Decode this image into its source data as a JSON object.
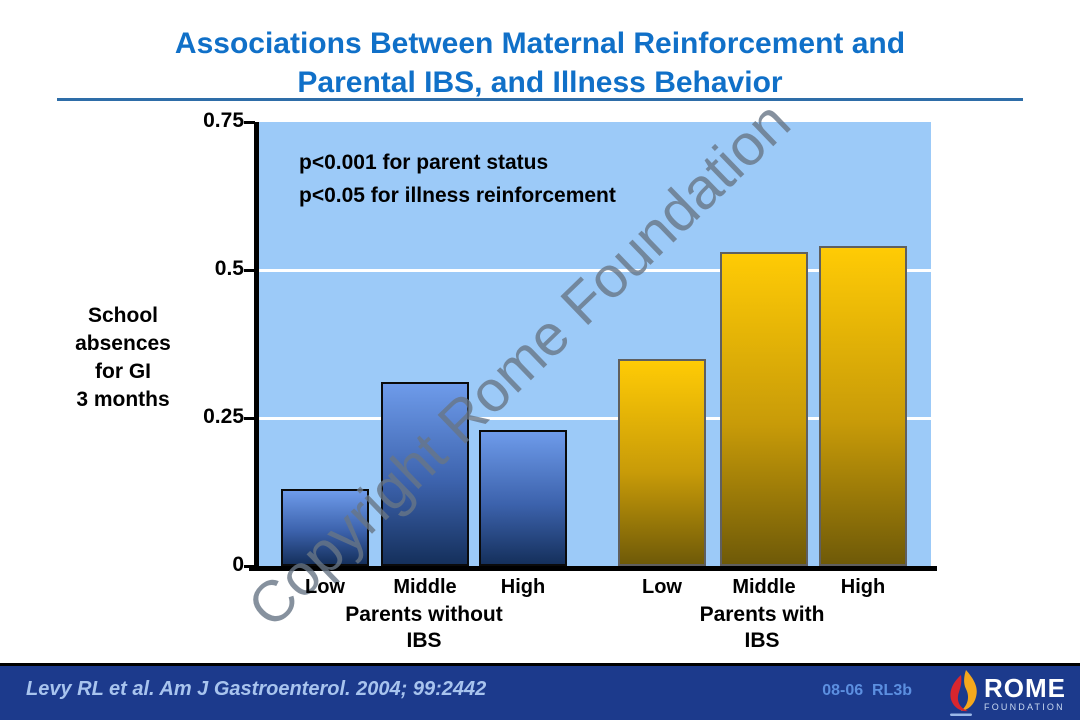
{
  "title": {
    "line1": "Associations Between Maternal Reinforcement and",
    "line2": "Parental IBS, and Illness Behavior"
  },
  "annotations": {
    "line1": "p<0.001 for parent status",
    "line2": "p<0.05 for illness reinforcement"
  },
  "y_axis_title": {
    "line1": "School",
    "line2": "absences",
    "line3": "for GI",
    "line4": "3 months"
  },
  "watermark": "Copyright Rome Foundation",
  "footer": {
    "citation": "Levy RL et al. Am J Gastroenterol. 2004; 99:2442",
    "slide_code": "08-06  RL3b",
    "logo_title": "ROME",
    "logo_subtitle": "FOUNDATION"
  },
  "colors": {
    "title_blue": "#1070C8",
    "plot_background": "#9CCAF8",
    "blue_bar_top": "#6E9BEA",
    "blue_bar_bottom": "#15305C",
    "gold_bar_top": "#FFCB05",
    "gold_bar_bottom": "#6F5A08",
    "footer_navy": "#1C3A8C",
    "gridline": "#ffffff"
  },
  "chart_data": {
    "type": "bar",
    "title": "School absences for GI over 3 months by parental IBS status and illness reinforcement",
    "ylabel": "School absences for GI 3 months",
    "xlabel": "",
    "ylim": [
      0,
      0.75
    ],
    "grid": true,
    "legend_position": "none",
    "categories": [
      "Low",
      "Middle",
      "High"
    ],
    "yticks": [
      {
        "label": "0",
        "value": 0,
        "grid": false
      },
      {
        "label": "0.25",
        "value": 0.25,
        "grid": true
      },
      {
        "label": "0.5",
        "value": 0.5,
        "grid": true
      },
      {
        "label": "0.75",
        "value": 0.75,
        "grid": false
      }
    ],
    "groups": [
      {
        "name": "Parents without IBS",
        "label_line1": "Parents without",
        "label_line2": "IBS",
        "bar_style": "blue",
        "values": [
          0.13,
          0.31,
          0.23
        ]
      },
      {
        "name": "Parents with IBS",
        "label_line1": "Parents with",
        "label_line2": "IBS",
        "bar_style": "gold",
        "values": [
          0.35,
          0.53,
          0.54
        ]
      }
    ]
  }
}
